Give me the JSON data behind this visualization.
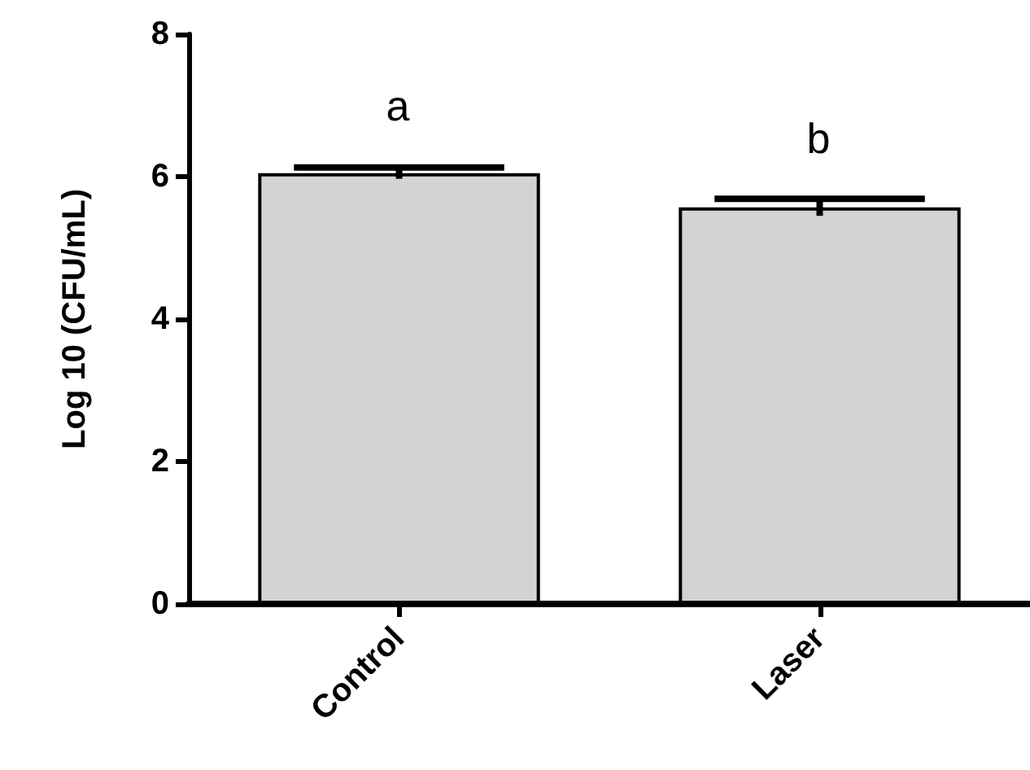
{
  "chart_data": {
    "type": "bar",
    "ylabel": "Log 10 (CFU/mL)",
    "categories": [
      "Control",
      "Laser"
    ],
    "values": [
      6.05,
      5.57
    ],
    "errors": [
      0.08,
      0.12
    ],
    "color": "#d3d3d3",
    "ylim": [
      0,
      8
    ],
    "yticks": [
      0,
      2,
      4,
      6,
      8
    ],
    "grid": false,
    "annotations": [
      "a",
      "b"
    ]
  }
}
